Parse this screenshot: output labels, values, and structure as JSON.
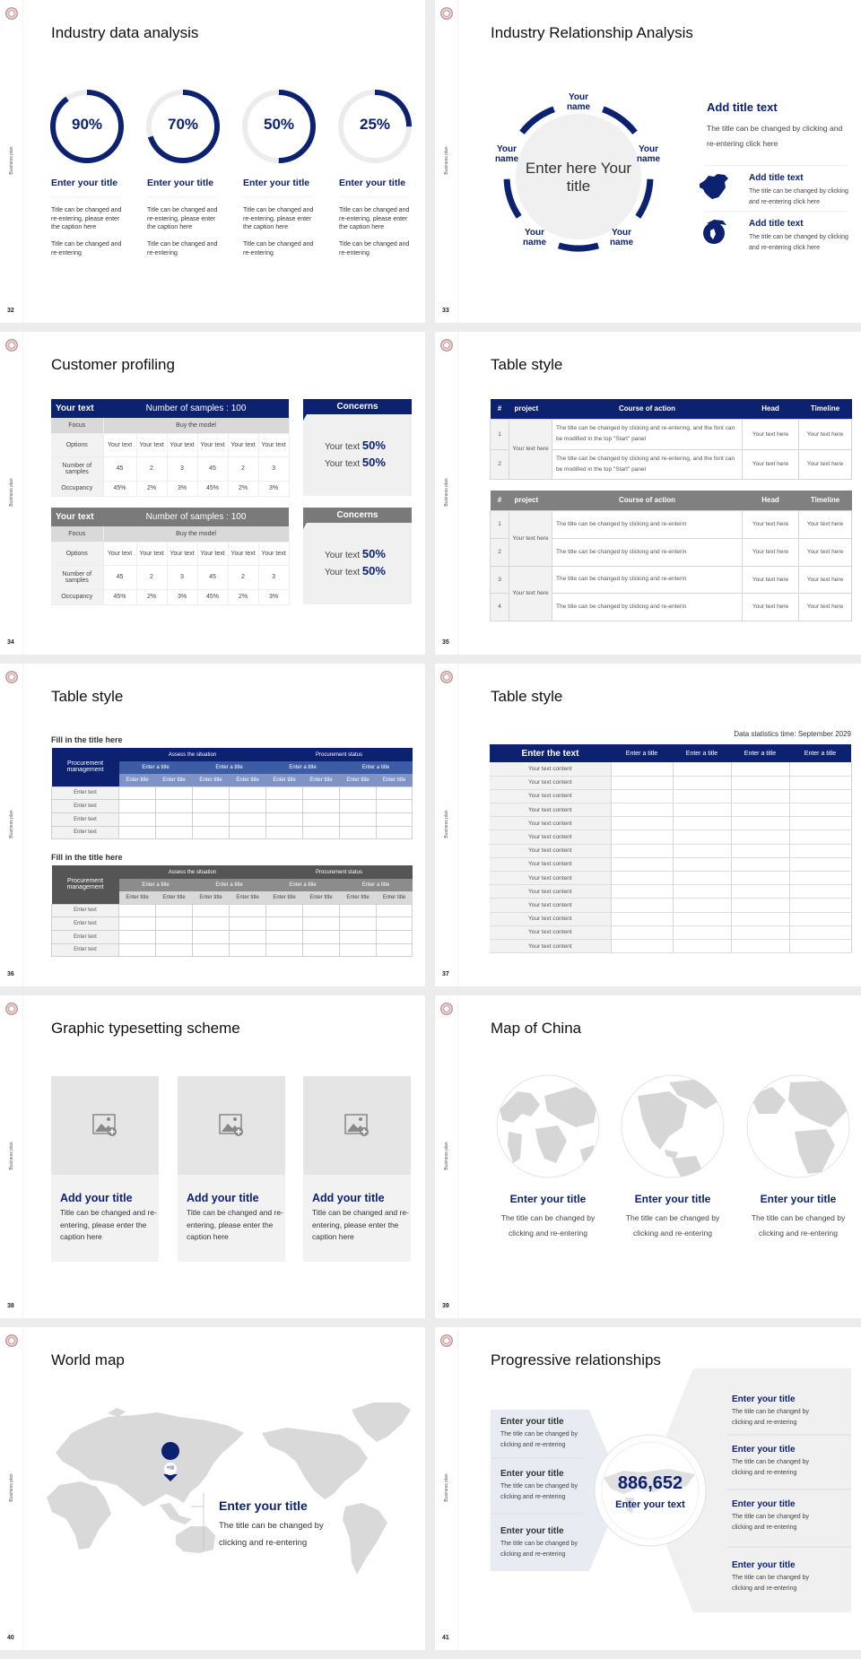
{
  "colors": {
    "navy": "#0c2270",
    "gray_header": "#7f7f7f",
    "light_gray": "#f0f0f0",
    "map_gray": "#d9d9d9"
  },
  "common": {
    "side_label": "Business plan",
    "logo": "university-seal-logo"
  },
  "s32": {
    "page": "32",
    "title": "Industry data analysis",
    "items": [
      {
        "percent": 90,
        "label": "90%",
        "title": "Enter your title",
        "text1": "Title can be changed and re-entering, please enter the caption here",
        "text2": "Title can be changed and re-entering"
      },
      {
        "percent": 70,
        "label": "70%",
        "title": "Enter your title",
        "text1": "Title can be changed and re-entering, please enter the caption here",
        "text2": "Title can be changed and re-entering"
      },
      {
        "percent": 50,
        "label": "50%",
        "title": "Enter your title",
        "text1": "Title can be changed and re-entering, please enter the caption here",
        "text2": "Title can be changed and re-entering"
      },
      {
        "percent": 25,
        "label": "25%",
        "title": "Enter your title",
        "text1": "Title can be changed and re-entering, please enter the caption here",
        "text2": "Title can be changed and re-entering"
      }
    ]
  },
  "s33": {
    "page": "33",
    "title": "Industry Relationship Analysis",
    "center": "Enter here Your title",
    "names": [
      "Your name",
      "Your name",
      "Your name",
      "Your name",
      "Your name"
    ],
    "main_title": "Add title text",
    "main_text": "The title can be changed by clicking and re-entering click here",
    "items": [
      {
        "icon": "china-map-icon",
        "title": "Add title text",
        "text": "The title can be changed by clicking and re-entering click here"
      },
      {
        "icon": "globe-icon",
        "title": "Add title text",
        "text": "The title can be changed by clicking and re-entering click here"
      }
    ]
  },
  "s34": {
    "page": "34",
    "title": "Customer profiling",
    "tables": [
      {
        "head_left": "Your text",
        "head_right": "Number of samples : 100",
        "focus": "Focus",
        "focus_value": "Buy the model",
        "rows": [
          {
            "label": "Options",
            "cells": [
              "Your text",
              "Your text",
              "Your text",
              "Your text",
              "Your text",
              "Your text"
            ]
          },
          {
            "label": "Number of samples",
            "cells": [
              "45",
              "2",
              "3",
              "45",
              "2",
              "3"
            ]
          },
          {
            "label": "Occupancy",
            "cells": [
              "45%",
              "2%",
              "3%",
              "45%",
              "2%",
              "3%"
            ]
          }
        ],
        "concerns": "Concerns",
        "lines": [
          {
            "text": "Your text",
            "value": "50%"
          },
          {
            "text": "Your text",
            "value": "50%"
          }
        ]
      },
      {
        "head_left": "Your text",
        "head_right": "Number of samples : 100",
        "focus": "Focus",
        "focus_value": "Buy the model",
        "rows": [
          {
            "label": "Options",
            "cells": [
              "Your text",
              "Your text",
              "Your text",
              "Your text",
              "Your text",
              "Your text"
            ]
          },
          {
            "label": "Number of samples",
            "cells": [
              "45",
              "2",
              "3",
              "45",
              "2",
              "3"
            ]
          },
          {
            "label": "Occupancy",
            "cells": [
              "45%",
              "2%",
              "3%",
              "45%",
              "2%",
              "3%"
            ]
          }
        ],
        "concerns": "Concerns",
        "lines": [
          {
            "text": "Your text",
            "value": "50%"
          },
          {
            "text": "Your text",
            "value": "50%"
          }
        ]
      }
    ]
  },
  "s35": {
    "page": "35",
    "title": "Table style",
    "headers": [
      "#",
      "project",
      "Course of action",
      "Head",
      "Timeline"
    ],
    "table1": {
      "projects": [
        "Your text here"
      ],
      "rows": [
        {
          "n": "1",
          "course": "The title can be changed by clicking and re-entering, and the font can be modified in the top \"Start\" panel",
          "head": "Your text here",
          "timeline": "Your text here"
        },
        {
          "n": "2",
          "course": "The title can be changed by clicking and re-entering, and the font can be modified in the top \"Start\" panel",
          "head": "Your text here",
          "timeline": "Your text here"
        }
      ]
    },
    "table2": {
      "projects": [
        "Your text here",
        "Your text here"
      ],
      "rows": [
        {
          "n": "1",
          "course": "The title can be changed by clicking and re-enterin",
          "head": "Your text here",
          "timeline": "Your text here"
        },
        {
          "n": "2",
          "course": "The title can be changed by clicking and re-enterin",
          "head": "Your text here",
          "timeline": "Your text here"
        },
        {
          "n": "3",
          "course": "The title can be changed by clicking and re-enterin",
          "head": "Your text here",
          "timeline": "Your text here"
        },
        {
          "n": "4",
          "course": "The title can be changed by clicking and re-enterin",
          "head": "Your text here",
          "timeline": "Your text here"
        }
      ]
    }
  },
  "s36": {
    "page": "36",
    "title": "Table style",
    "tables": [
      {
        "heading": "Fill in the title here",
        "corner": "Procurement management",
        "groups": [
          "Assess the situation",
          "Procurement status"
        ],
        "subgroups": [
          "Enter a title",
          "Enter a title",
          "Enter a title",
          "Enter a title"
        ],
        "cols": [
          "Enter title",
          "Enter title",
          "Enter title",
          "Enter title",
          "Enter title",
          "Enter title",
          "Enter title",
          "Enter title"
        ],
        "rows": [
          "Enter text",
          "Enter text",
          "Enter text",
          "Enter text"
        ]
      },
      {
        "heading": "Fill in the title here",
        "corner": "Procurement management",
        "groups": [
          "Assess the situation",
          "Procurement status"
        ],
        "subgroups": [
          "Enter a title",
          "Enter a title",
          "Enter a title",
          "Enter a title"
        ],
        "cols": [
          "Enter title",
          "Enter title",
          "Enter title",
          "Enter title",
          "Enter title",
          "Enter title",
          "Enter title",
          "Enter title"
        ],
        "rows": [
          "Enter text",
          "Enter text",
          "Enter text",
          "Enter text"
        ]
      }
    ]
  },
  "s37": {
    "page": "37",
    "title": "Table style",
    "stat_time": "Data statistics time: September 2029",
    "headers": [
      "Enter the text",
      "Enter a title",
      "Enter a title",
      "Enter a title",
      "Enter a title"
    ],
    "rows": [
      "Your text content",
      "Your text content",
      "Your text content",
      "Your text content",
      "Your text content",
      "Your text content",
      "Your text content",
      "Your text content",
      "Your text content",
      "Your text content",
      "Your text content",
      "Your text content",
      "Your text content",
      "Your text content"
    ]
  },
  "s38": {
    "page": "38",
    "title": "Graphic typesetting scheme",
    "cards": [
      {
        "icon": "add-image-icon",
        "title": "Add your title",
        "text": "Title can be changed and re-entering, please enter the caption here"
      },
      {
        "icon": "add-image-icon",
        "title": "Add your title",
        "text": "Title can be changed and re-entering, please enter the caption here"
      },
      {
        "icon": "add-image-icon",
        "title": "Add your title",
        "text": "Title can be changed and re-entering, please enter the caption here"
      }
    ]
  },
  "s39": {
    "page": "39",
    "title": "Map of China",
    "items": [
      {
        "title": "Enter your title",
        "text": "The title can be changed by clicking and re-entering"
      },
      {
        "title": "Enter your title",
        "text": "The title can be changed by clicking and re-entering"
      },
      {
        "title": "Enter your title",
        "text": "The title can be changed by clicking and re-entering"
      }
    ]
  },
  "s40": {
    "page": "40",
    "title": "World map",
    "pin": "中国",
    "item_title": "Enter your title",
    "item_text": "The title can be changed by clicking and re-entering"
  },
  "s41": {
    "page": "41",
    "title": "Progressive relationships",
    "number": "886,652",
    "center_text": "Enter your text",
    "left": [
      {
        "title": "Enter your title",
        "text": "The title can be changed by clicking and re-entering"
      },
      {
        "title": "Enter your title",
        "text": "The title can be changed by clicking and re-entering"
      },
      {
        "title": "Enter your title",
        "text": "The title can be changed by clicking and re-entering"
      }
    ],
    "right": [
      {
        "title": "Enter your title",
        "text": "The title can be changed by clicking and re-entering"
      },
      {
        "title": "Enter your title",
        "text": "The title can be changed by clicking and re-entering"
      },
      {
        "title": "Enter your title",
        "text": "The title can be changed by clicking and re-entering"
      },
      {
        "title": "Enter your title",
        "text": "The title can be changed by clicking and re-entering"
      }
    ]
  }
}
